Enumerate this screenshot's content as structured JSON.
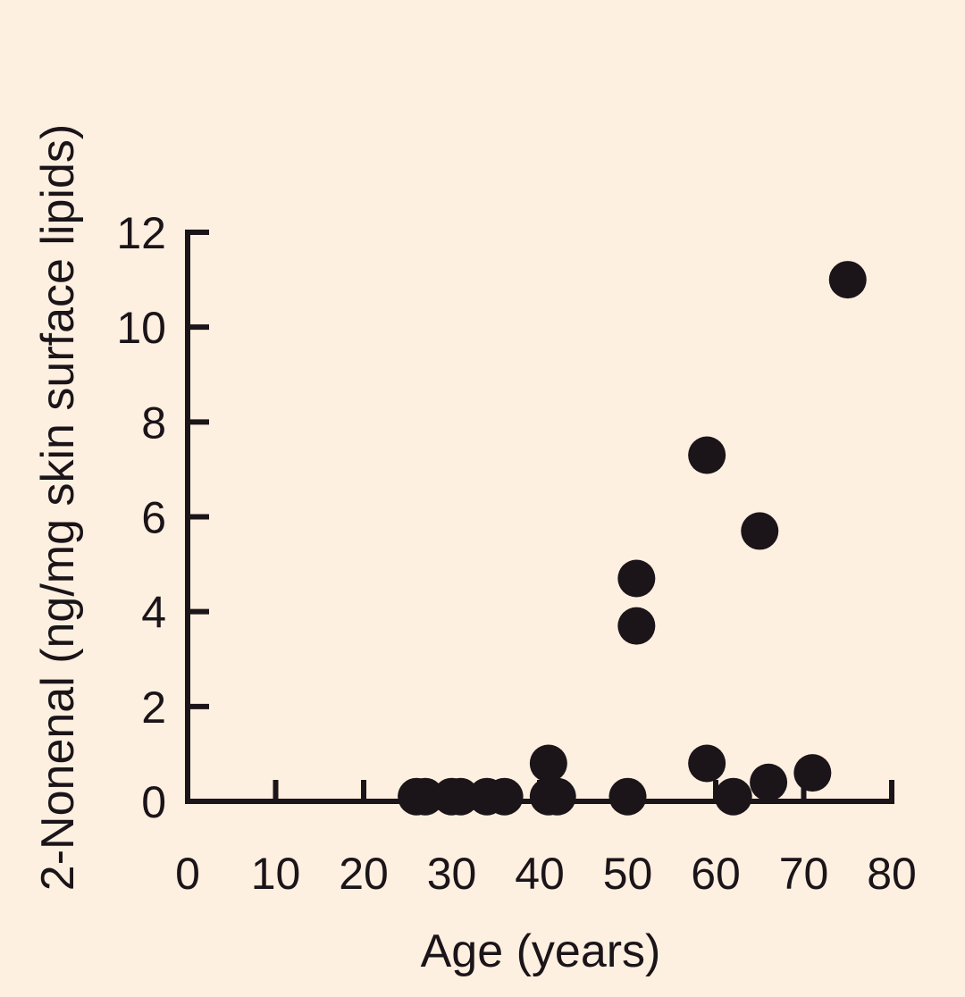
{
  "chart_data": {
    "type": "scatter",
    "title": "",
    "xlabel": "Age (years)",
    "ylabel": "2-Nonenal (ng/mg skin surface lipids)",
    "xlim": [
      0,
      80
    ],
    "ylim": [
      0,
      12
    ],
    "x_ticks": [
      0,
      10,
      20,
      30,
      40,
      50,
      60,
      70,
      80
    ],
    "y_ticks": [
      0,
      2,
      4,
      6,
      8,
      10,
      12
    ],
    "grid": false,
    "legend": "none",
    "marker_color": "#1b1419",
    "background_color": "#fdf0e0",
    "series": [
      {
        "points": [
          {
            "x": 26,
            "y": 0.1
          },
          {
            "x": 27,
            "y": 0.1
          },
          {
            "x": 30,
            "y": 0.1
          },
          {
            "x": 31,
            "y": 0.1
          },
          {
            "x": 34,
            "y": 0.1
          },
          {
            "x": 36,
            "y": 0.1
          },
          {
            "x": 41,
            "y": 0.8
          },
          {
            "x": 41,
            "y": 0.1
          },
          {
            "x": 42,
            "y": 0.1
          },
          {
            "x": 50,
            "y": 0.1
          },
          {
            "x": 51,
            "y": 4.7
          },
          {
            "x": 51,
            "y": 3.7
          },
          {
            "x": 59,
            "y": 7.3
          },
          {
            "x": 59,
            "y": 0.8
          },
          {
            "x": 62,
            "y": 0.1
          },
          {
            "x": 65,
            "y": 5.7
          },
          {
            "x": 66,
            "y": 0.4
          },
          {
            "x": 71,
            "y": 0.6
          },
          {
            "x": 75,
            "y": 11.0
          }
        ]
      }
    ]
  }
}
